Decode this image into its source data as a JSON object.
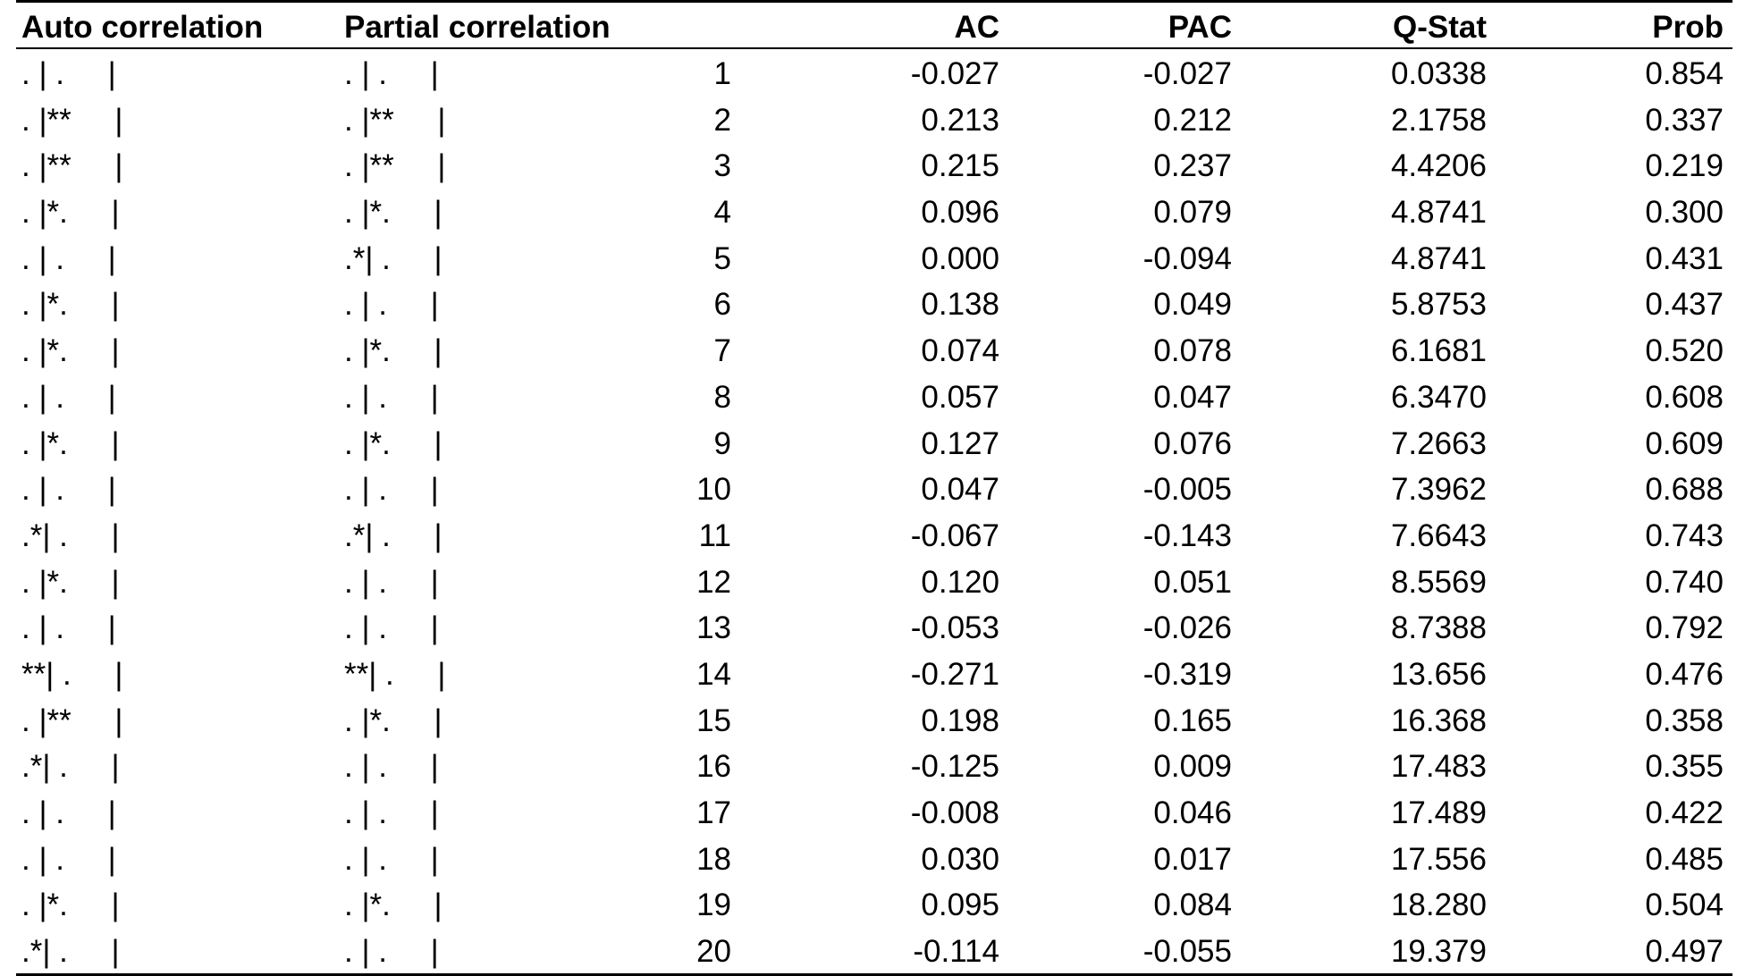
{
  "header": {
    "auto": "Auto correlation",
    "partial": "Partial correlation",
    "ac": "AC",
    "pac": "PAC",
    "qstat": "Q-Stat",
    "prob": "Prob"
  },
  "rows": [
    {
      "auto": ". | .     |",
      "partial": ". | .     |",
      "lag": "1",
      "ac": "-0.027",
      "pac": "-0.027",
      "q": "0.0338",
      "prob": "0.854"
    },
    {
      "auto": ". |**     |",
      "partial": ". |**     |",
      "lag": "2",
      "ac": "0.213",
      "pac": "0.212",
      "q": "2.1758",
      "prob": "0.337"
    },
    {
      "auto": ". |**     |",
      "partial": ". |**     |",
      "lag": "3",
      "ac": "0.215",
      "pac": "0.237",
      "q": "4.4206",
      "prob": "0.219"
    },
    {
      "auto": ". |*.     |",
      "partial": ". |*.     |",
      "lag": "4",
      "ac": "0.096",
      "pac": "0.079",
      "q": "4.8741",
      "prob": "0.300"
    },
    {
      "auto": ". | .     |",
      "partial": ".*| .     |",
      "lag": "5",
      "ac": "0.000",
      "pac": "-0.094",
      "q": "4.8741",
      "prob": "0.431"
    },
    {
      "auto": ". |*.     |",
      "partial": ". | .     |",
      "lag": "6",
      "ac": "0.138",
      "pac": "0.049",
      "q": "5.8753",
      "prob": "0.437"
    },
    {
      "auto": ". |*.     |",
      "partial": ". |*.     |",
      "lag": "7",
      "ac": "0.074",
      "pac": "0.078",
      "q": "6.1681",
      "prob": "0.520"
    },
    {
      "auto": ". | .     |",
      "partial": ". | .     |",
      "lag": "8",
      "ac": "0.057",
      "pac": "0.047",
      "q": "6.3470",
      "prob": "0.608"
    },
    {
      "auto": ". |*.     |",
      "partial": ". |*.     |",
      "lag": "9",
      "ac": "0.127",
      "pac": "0.076",
      "q": "7.2663",
      "prob": "0.609"
    },
    {
      "auto": ". | .     |",
      "partial": ". | .     |",
      "lag": "10",
      "ac": "0.047",
      "pac": "-0.005",
      "q": "7.3962",
      "prob": "0.688"
    },
    {
      "auto": ".*| .     |",
      "partial": ".*| .     |",
      "lag": "11",
      "ac": "-0.067",
      "pac": "-0.143",
      "q": "7.6643",
      "prob": "0.743"
    },
    {
      "auto": ". |*.     |",
      "partial": ". | .     |",
      "lag": "12",
      "ac": "0.120",
      "pac": "0.051",
      "q": "8.5569",
      "prob": "0.740"
    },
    {
      "auto": ". | .     |",
      "partial": ". | .     |",
      "lag": "13",
      "ac": "-0.053",
      "pac": "-0.026",
      "q": "8.7388",
      "prob": "0.792"
    },
    {
      "auto": "**| .     |",
      "partial": "**| .     |",
      "lag": "14",
      "ac": "-0.271",
      "pac": "-0.319",
      "q": "13.656",
      "prob": "0.476"
    },
    {
      "auto": ". |**     |",
      "partial": ". |*.     |",
      "lag": "15",
      "ac": "0.198",
      "pac": "0.165",
      "q": "16.368",
      "prob": "0.358"
    },
    {
      "auto": ".*| .     |",
      "partial": ". | .     |",
      "lag": "16",
      "ac": "-0.125",
      "pac": "0.009",
      "q": "17.483",
      "prob": "0.355"
    },
    {
      "auto": ". | .     |",
      "partial": ". | .     |",
      "lag": "17",
      "ac": "-0.008",
      "pac": "0.046",
      "q": "17.489",
      "prob": "0.422"
    },
    {
      "auto": ". | .     |",
      "partial": ". | .     |",
      "lag": "18",
      "ac": "0.030",
      "pac": "0.017",
      "q": "17.556",
      "prob": "0.485"
    },
    {
      "auto": ". |*.     |",
      "partial": ". |*.     |",
      "lag": "19",
      "ac": "0.095",
      "pac": "0.084",
      "q": "18.280",
      "prob": "0.504"
    },
    {
      "auto": ".*| .     |",
      "partial": ". | .     |",
      "lag": "20",
      "ac": "-0.114",
      "pac": "-0.055",
      "q": "19.379",
      "prob": "0.497"
    }
  ]
}
